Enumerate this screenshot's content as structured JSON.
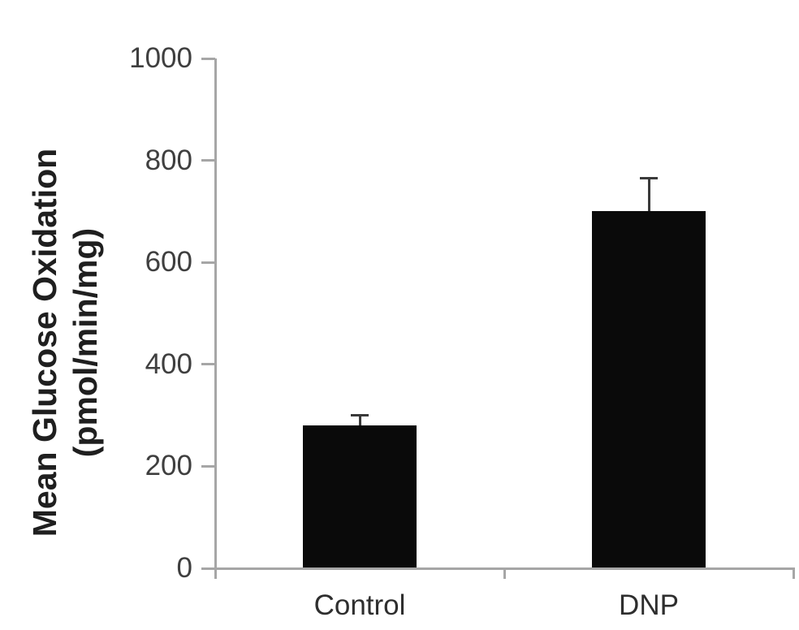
{
  "chart_data": {
    "type": "bar",
    "title": "",
    "ylabel_line1": "Mean Glucose Oxidation",
    "ylabel_line2": "(pmol/min/mg)",
    "xlabel": "",
    "categories": [
      "Control",
      "DNP"
    ],
    "values": [
      280,
      700
    ],
    "errors": [
      20,
      65
    ],
    "yticks": [
      0,
      200,
      400,
      600,
      800,
      1000
    ],
    "ylim": [
      0,
      1000
    ],
    "grid": "off",
    "legend": "none",
    "bar_color": "#0a0a0a",
    "axis_color": "#a6a6a6",
    "error_bar_color": "#3a3a3a",
    "tick_label_color": "#3f3f3f",
    "category_label_color": "#2e2e2e",
    "ylabel_color": "#1f1f1f"
  }
}
